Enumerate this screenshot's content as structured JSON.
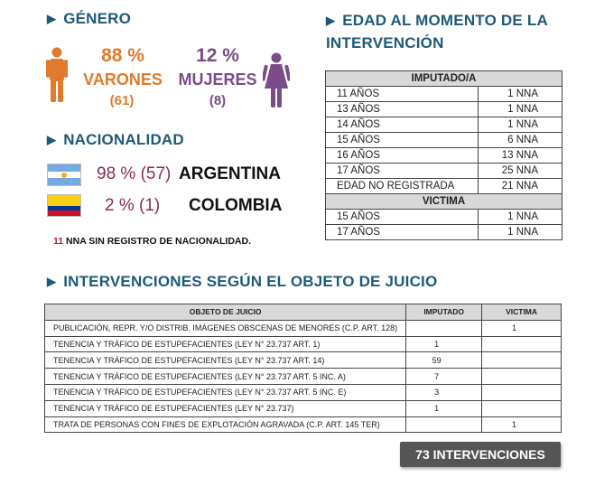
{
  "gender": {
    "title": "GÉNERO",
    "male": {
      "pct": "88 %",
      "label": "VARONES",
      "count": "(61)"
    },
    "female": {
      "pct": "12 %",
      "label": "MUJERES",
      "count": "(8)"
    }
  },
  "nationality": {
    "title": "NACIONALIDAD",
    "rows": [
      {
        "pct": "98 % (57)",
        "country": "ARGENTINA"
      },
      {
        "pct": "2 % (1)",
        "country": "COLOMBIA"
      }
    ],
    "note_count": "11",
    "note_text": "NNA SIN REGISTRO DE NACIONALIDAD."
  },
  "age": {
    "title": "EDAD AL MOMENTO DE LA INTERVENCIÓN",
    "imputado_header": "IMPUTADO/A",
    "imputado": [
      {
        "label": "11 AÑOS",
        "value": "1 NNA"
      },
      {
        "label": "13 AÑOS",
        "value": "1 NNA"
      },
      {
        "label": "14 AÑOS",
        "value": "1 NNA"
      },
      {
        "label": "15 AÑOS",
        "value": "6 NNA"
      },
      {
        "label": "16 AÑOS",
        "value": "13 NNA"
      },
      {
        "label": "17 AÑOS",
        "value": "25 NNA"
      },
      {
        "label": "EDAD NO REGISTRADA",
        "value": "21 NNA"
      }
    ],
    "victima_header": "VICTIMA",
    "victima": [
      {
        "label": "15 AÑOS",
        "value": "1 NNA"
      },
      {
        "label": "17 AÑOS",
        "value": "1 NNA"
      }
    ]
  },
  "objects": {
    "title": "INTERVENCIONES SEGÚN EL OBJETO DE JUICIO",
    "headers": [
      "OBJETO DE JUICIO",
      "IMPUTADO",
      "VICTIMA"
    ],
    "rows": [
      {
        "desc": "PUBLICACIÓN, REPR. Y/O DISTRIB. IMÁGENES OBSCENAS DE MENORES (C.P. ART. 128)",
        "imputado": "",
        "victima": "1"
      },
      {
        "desc": "TENENCIA Y TRÁFICO DE ESTUPEFACIENTES (LEY N° 23.737 ART. 1)",
        "imputado": "1",
        "victima": ""
      },
      {
        "desc": "TENENCIA Y TRÁFICO DE ESTUPEFACIENTES (LEY N° 23.737 ART. 14)",
        "imputado": "59",
        "victima": ""
      },
      {
        "desc": "TENENCIA Y TRÁFICO DE ESTUPEFACIENTES (LEY N° 23.737 ART. 5 INC. A)",
        "imputado": "7",
        "victima": ""
      },
      {
        "desc": "TENENCIA Y TRÁFICO DE ESTUPEFACIENTES (LEY N° 23.737 ART. 5 INC. E)",
        "imputado": "3",
        "victima": ""
      },
      {
        "desc": "TENENCIA Y TRÁFICO DE ESTUPEFACIENTES (LEY N° 23.737)",
        "imputado": "1",
        "victima": ""
      },
      {
        "desc": "TRATA DE PERSONAS CON FINES DE EXPLOTACIÓN AGRAVADA (C.P. ART. 145 TER)",
        "imputado": "",
        "victima": "1"
      }
    ]
  },
  "total_label": "73 INTERVENCIONES",
  "colors": {
    "heading": "#1e5a78",
    "male": "#e07a2c",
    "female": "#7a4c8a",
    "nat_pct": "#8a2a55"
  },
  "icons": {
    "male": "male-person-icon",
    "female": "female-person-icon",
    "arrow": "triangle-right-icon"
  }
}
